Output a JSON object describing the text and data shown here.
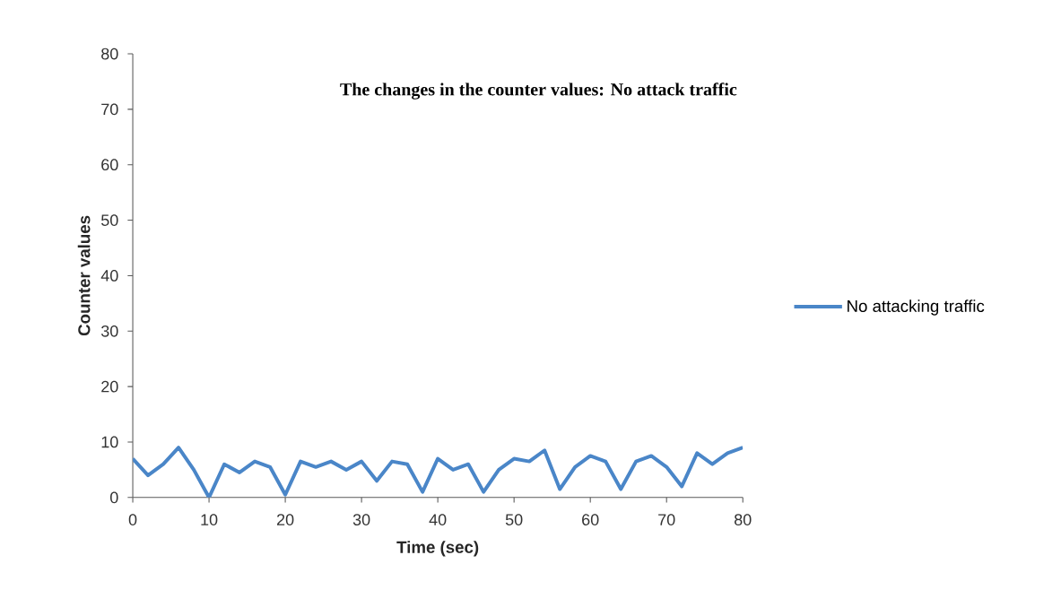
{
  "chart_data": {
    "type": "line",
    "title": "The changes in the counter values: No attack traffic",
    "xlabel": "Time (sec)",
    "ylabel": "Counter values",
    "x": [
      0,
      2,
      4,
      6,
      8,
      10,
      12,
      14,
      16,
      18,
      20,
      22,
      24,
      26,
      28,
      30,
      32,
      34,
      36,
      38,
      40,
      42,
      44,
      46,
      48,
      50,
      52,
      54,
      56,
      58,
      60,
      62,
      64,
      66,
      68,
      70,
      72,
      74,
      76,
      78,
      80
    ],
    "series": [
      {
        "name": "No attacking traffic",
        "color": "#4a86c8",
        "values": [
          7,
          4,
          6,
          9,
          5,
          0,
          6,
          4.5,
          6.5,
          5.5,
          0.5,
          6.5,
          5.5,
          6.5,
          5,
          6.5,
          3,
          6.5,
          6,
          1,
          7,
          5,
          6,
          1,
          5,
          7,
          6.5,
          8.5,
          1.5,
          5.5,
          7.5,
          6.5,
          1.5,
          6.5,
          7.5,
          5.5,
          2,
          8,
          6,
          8,
          9
        ]
      }
    ],
    "xlim": [
      0,
      80
    ],
    "ylim": [
      0,
      80
    ],
    "xticks": [
      0,
      10,
      20,
      30,
      40,
      50,
      60,
      70,
      80
    ],
    "yticks": [
      0,
      10,
      20,
      30,
      40,
      50,
      60,
      70,
      80
    ],
    "legend": "right",
    "marker": "none"
  }
}
